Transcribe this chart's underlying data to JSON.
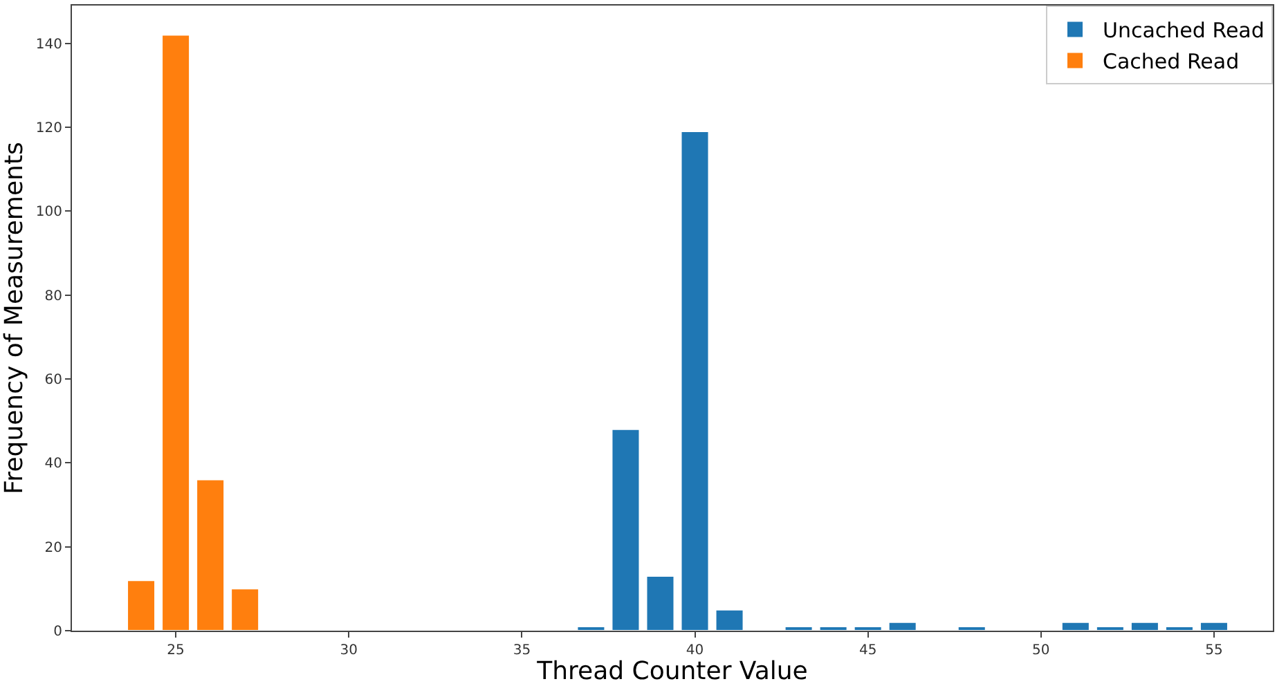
{
  "chart_data": {
    "type": "bar",
    "xlabel": "Thread Counter Value",
    "ylabel": "Frequency of Measurements",
    "xlim": [
      22,
      56.7
    ],
    "xticks": [
      25,
      30,
      35,
      40,
      45,
      50,
      55
    ],
    "ylim": [
      0,
      149
    ],
    "yticks": [
      0,
      20,
      40,
      60,
      80,
      100,
      120,
      140
    ],
    "grid": false,
    "legend": "top right",
    "series": [
      {
        "name": "Uncached Read",
        "color": "#1f77b4",
        "x": [
          37,
          38,
          39,
          40,
          41,
          43,
          44,
          45,
          46,
          48,
          51,
          52,
          53,
          54,
          55
        ],
        "values": [
          1,
          48,
          13,
          119,
          5,
          1,
          1,
          1,
          2,
          1,
          2,
          1,
          2,
          1,
          2
        ]
      },
      {
        "name": "Cached Read",
        "color": "#ff7f0e",
        "x": [
          24,
          25,
          26,
          27
        ],
        "values": [
          12,
          142,
          36,
          10
        ]
      }
    ]
  }
}
